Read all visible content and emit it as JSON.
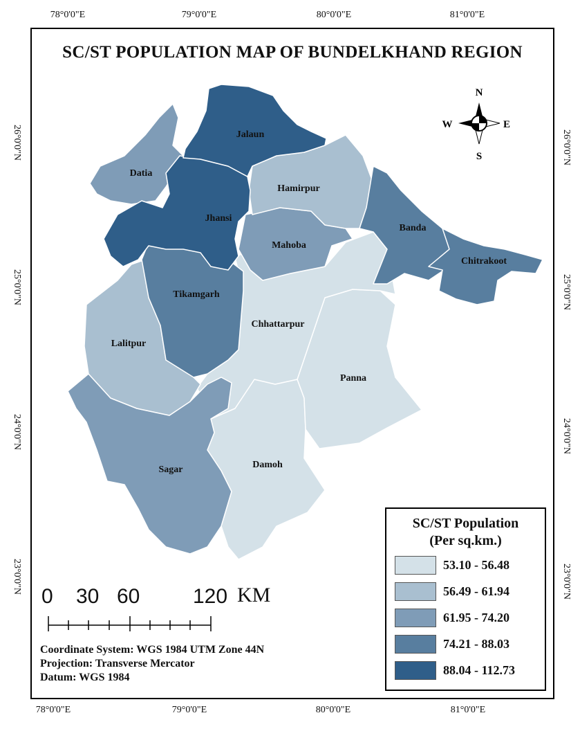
{
  "title": "SC/ST POPULATION MAP OF BUNDELKHAND REGION",
  "graticule": {
    "top": [
      "78°0'0\"E",
      "79°0'0\"E",
      "80°0'0\"E",
      "81°0'0\"E"
    ],
    "bottom": [
      "78°0'0\"E",
      "79°0'0\"E",
      "80°0'0\"E",
      "81°0'0\"E"
    ],
    "left": [
      "26°0'0\"N",
      "25°0'0\"N",
      "24°0'0\"N",
      "23°0'0\"N"
    ],
    "right": [
      "26°0'0\"N",
      "25°0'0\"N",
      "24°0'0\"N",
      "23°0'0\"N"
    ]
  },
  "colors": {
    "class1": "#d4e1e8",
    "class2": "#a9bfd0",
    "class3": "#7f9cb7",
    "class4": "#587e9f",
    "class5": "#2f5e89",
    "border": "#ffffff"
  },
  "districts": [
    {
      "name": "Jalaun",
      "class": 5
    },
    {
      "name": "Datia",
      "class": 3
    },
    {
      "name": "Hamirpur",
      "class": 2
    },
    {
      "name": "Jhansi",
      "class": 5
    },
    {
      "name": "Banda",
      "class": 4
    },
    {
      "name": "Mahoba",
      "class": 3
    },
    {
      "name": "Chitrakoot",
      "class": 4
    },
    {
      "name": "Tikamgarh",
      "class": 4
    },
    {
      "name": "Chhattarpur",
      "class": 1
    },
    {
      "name": "Lalitpur",
      "class": 2
    },
    {
      "name": "Panna",
      "class": 1
    },
    {
      "name": "Sagar",
      "class": 3
    },
    {
      "name": "Damoh",
      "class": 1
    }
  ],
  "north_arrow": {
    "n": "N",
    "s": "S",
    "e": "E",
    "w": "W"
  },
  "legend": {
    "title": "SC/ST Population",
    "subtitle": "(Per sq.km.)",
    "classes": [
      {
        "range": "53.10 - 56.48",
        "color": "#d4e1e8"
      },
      {
        "range": "56.49 - 61.94",
        "color": "#a9bfd0"
      },
      {
        "range": "61.95 - 74.20",
        "color": "#7f9cb7"
      },
      {
        "range": "74.21 - 88.03",
        "color": "#587e9f"
      },
      {
        "range": "88.04 - 112.73",
        "color": "#2f5e89"
      }
    ]
  },
  "scale_bar": {
    "labels": [
      "0",
      "30",
      "60",
      "120"
    ],
    "unit": "KM"
  },
  "info": {
    "coordinate_system": "Coordinate System: WGS 1984 UTM Zone 44N",
    "projection": "Projection: Transverse Mercator",
    "datum": "Datum: WGS 1984"
  }
}
